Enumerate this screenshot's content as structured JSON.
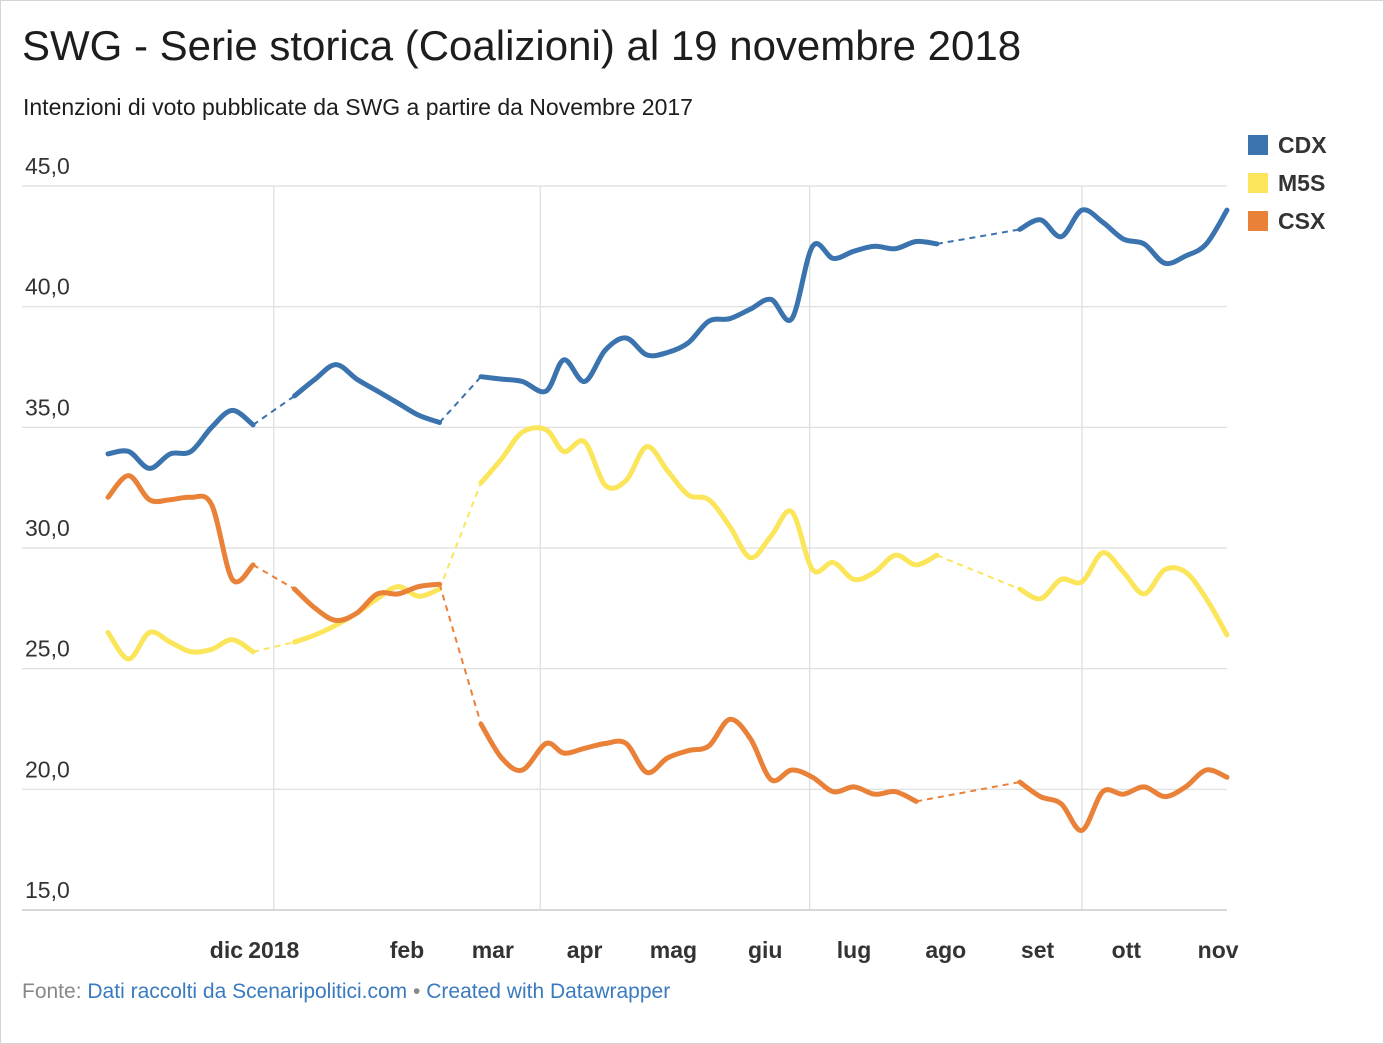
{
  "title": "SWG - Serie storica (Coalizioni) al 19 novembre 2018",
  "subtitle": "Intenzioni di voto pubblicate da SWG a partire da Novembre 2017",
  "footer": {
    "prefix": "Fonte:",
    "source": "Dati raccolti da Scenaripolitici.com",
    "separator": "•",
    "credit": "Created with Datawrapper"
  },
  "colors": {
    "CDX": "#3a73ad",
    "M5S": "#fbe55b",
    "CSX": "#e98139",
    "grid": "#dddddd",
    "link": "#3a7abf"
  },
  "chart_data": {
    "type": "line",
    "title": "SWG - Serie storica (Coalizioni) al 19 novembre 2018",
    "ylim": [
      15,
      45
    ],
    "xlim": [
      "2017-11-06",
      "2018-11-19"
    ],
    "yticks": [
      "45,0",
      "40,0",
      "35,0",
      "30,0",
      "25,0",
      "20,0",
      "15,0"
    ],
    "ytick_values": [
      45,
      40,
      35,
      30,
      25,
      20,
      15
    ],
    "xticks": [
      {
        "label": "dic",
        "date": "2017-12-01"
      },
      {
        "label": "2018",
        "date": "2018-01-01"
      },
      {
        "label": "feb",
        "date": "2018-02-01"
      },
      {
        "label": "mar",
        "date": "2018-03-01"
      },
      {
        "label": "apr",
        "date": "2018-04-01"
      },
      {
        "label": "mag",
        "date": "2018-05-01"
      },
      {
        "label": "giu",
        "date": "2018-06-01"
      },
      {
        "label": "lug",
        "date": "2018-07-01"
      },
      {
        "label": "ago",
        "date": "2018-08-01"
      },
      {
        "label": "set",
        "date": "2018-09-01"
      },
      {
        "label": "ott",
        "date": "2018-10-01"
      },
      {
        "label": "nov",
        "date": "2018-11-01"
      }
    ],
    "vgrid_dates": [
      "2018-01-01",
      "2018-04-01",
      "2018-07-01",
      "2018-10-01"
    ],
    "grid": true,
    "legend": "top-right",
    "series": [
      {
        "name": "CDX",
        "color": "#3a73ad",
        "points": [
          [
            "2017-11-06",
            33.9
          ],
          [
            "2017-11-13",
            34.0
          ],
          [
            "2017-11-20",
            33.3
          ],
          [
            "2017-11-27",
            33.9
          ],
          [
            "2017-12-04",
            34.0
          ],
          [
            "2017-12-11",
            35.0
          ],
          [
            "2017-12-18",
            35.7
          ],
          [
            "2017-12-25",
            35.1
          ],
          [
            "2018-01-08",
            36.3
          ],
          [
            "2018-01-15",
            37.0
          ],
          [
            "2018-01-22",
            37.6
          ],
          [
            "2018-01-29",
            37.0
          ],
          [
            "2018-02-05",
            36.5
          ],
          [
            "2018-02-12",
            36.0
          ],
          [
            "2018-02-19",
            35.5
          ],
          [
            "2018-02-26",
            35.2
          ],
          [
            "2018-03-12",
            37.1
          ],
          [
            "2018-03-19",
            37.0
          ],
          [
            "2018-03-26",
            36.9
          ],
          [
            "2018-04-03",
            36.5
          ],
          [
            "2018-04-09",
            37.8
          ],
          [
            "2018-04-16",
            36.9
          ],
          [
            "2018-04-23",
            38.2
          ],
          [
            "2018-04-30",
            38.7
          ],
          [
            "2018-05-07",
            38.0
          ],
          [
            "2018-05-14",
            38.1
          ],
          [
            "2018-05-21",
            38.5
          ],
          [
            "2018-05-28",
            39.4
          ],
          [
            "2018-06-04",
            39.5
          ],
          [
            "2018-06-11",
            39.9
          ],
          [
            "2018-06-18",
            40.3
          ],
          [
            "2018-06-25",
            39.5
          ],
          [
            "2018-07-02",
            42.5
          ],
          [
            "2018-07-09",
            42.0
          ],
          [
            "2018-07-16",
            42.3
          ],
          [
            "2018-07-23",
            42.5
          ],
          [
            "2018-07-30",
            42.4
          ],
          [
            "2018-08-06",
            42.7
          ],
          [
            "2018-08-13",
            42.6
          ],
          [
            "2018-09-10",
            43.2
          ],
          [
            "2018-09-17",
            43.6
          ],
          [
            "2018-09-24",
            42.9
          ],
          [
            "2018-10-01",
            44.0
          ],
          [
            "2018-10-08",
            43.5
          ],
          [
            "2018-10-15",
            42.8
          ],
          [
            "2018-10-22",
            42.6
          ],
          [
            "2018-10-29",
            41.8
          ],
          [
            "2018-11-05",
            42.1
          ],
          [
            "2018-11-12",
            42.6
          ],
          [
            "2018-11-19",
            44.0
          ]
        ]
      },
      {
        "name": "M5S",
        "color": "#fbe55b",
        "points": [
          [
            "2017-11-06",
            26.5
          ],
          [
            "2017-11-13",
            25.4
          ],
          [
            "2017-11-20",
            26.5
          ],
          [
            "2017-11-27",
            26.1
          ],
          [
            "2017-12-04",
            25.7
          ],
          [
            "2017-12-11",
            25.8
          ],
          [
            "2017-12-18",
            26.2
          ],
          [
            "2017-12-25",
            25.7
          ],
          [
            "2018-01-08",
            26.1
          ],
          [
            "2018-01-15",
            26.4
          ],
          [
            "2018-01-22",
            26.8
          ],
          [
            "2018-01-29",
            27.3
          ],
          [
            "2018-02-05",
            27.9
          ],
          [
            "2018-02-12",
            28.4
          ],
          [
            "2018-02-19",
            28.0
          ],
          [
            "2018-02-26",
            28.3
          ],
          [
            "2018-03-12",
            32.7
          ],
          [
            "2018-03-19",
            33.7
          ],
          [
            "2018-03-26",
            34.8
          ],
          [
            "2018-04-03",
            34.9
          ],
          [
            "2018-04-09",
            34.0
          ],
          [
            "2018-04-16",
            34.4
          ],
          [
            "2018-04-23",
            32.6
          ],
          [
            "2018-04-30",
            32.8
          ],
          [
            "2018-05-07",
            34.2
          ],
          [
            "2018-05-14",
            33.2
          ],
          [
            "2018-05-21",
            32.2
          ],
          [
            "2018-05-28",
            32.0
          ],
          [
            "2018-06-04",
            30.9
          ],
          [
            "2018-06-11",
            29.6
          ],
          [
            "2018-06-18",
            30.5
          ],
          [
            "2018-06-25",
            31.5
          ],
          [
            "2018-07-02",
            29.1
          ],
          [
            "2018-07-09",
            29.4
          ],
          [
            "2018-07-16",
            28.7
          ],
          [
            "2018-07-23",
            29.0
          ],
          [
            "2018-07-30",
            29.7
          ],
          [
            "2018-08-06",
            29.3
          ],
          [
            "2018-08-13",
            29.7
          ],
          [
            "2018-09-10",
            28.3
          ],
          [
            "2018-09-17",
            27.9
          ],
          [
            "2018-09-24",
            28.7
          ],
          [
            "2018-10-01",
            28.6
          ],
          [
            "2018-10-08",
            29.8
          ],
          [
            "2018-10-15",
            29.0
          ],
          [
            "2018-10-22",
            28.1
          ],
          [
            "2018-10-29",
            29.1
          ],
          [
            "2018-11-05",
            29.0
          ],
          [
            "2018-11-12",
            27.9
          ],
          [
            "2018-11-19",
            26.4
          ]
        ]
      },
      {
        "name": "CSX",
        "color": "#e98139",
        "points": [
          [
            "2017-11-06",
            32.1
          ],
          [
            "2017-11-13",
            33.0
          ],
          [
            "2017-11-20",
            32.0
          ],
          [
            "2017-11-27",
            32.0
          ],
          [
            "2017-12-04",
            32.1
          ],
          [
            "2017-12-11",
            31.8
          ],
          [
            "2017-12-18",
            28.7
          ],
          [
            "2017-12-25",
            29.3
          ],
          [
            "2018-01-08",
            28.3
          ],
          [
            "2018-01-15",
            27.5
          ],
          [
            "2018-01-22",
            27.0
          ],
          [
            "2018-01-29",
            27.3
          ],
          [
            "2018-02-05",
            28.1
          ],
          [
            "2018-02-12",
            28.1
          ],
          [
            "2018-02-19",
            28.4
          ],
          [
            "2018-02-26",
            28.5
          ],
          [
            "2018-03-12",
            22.7
          ],
          [
            "2018-03-19",
            21.3
          ],
          [
            "2018-03-26",
            20.8
          ],
          [
            "2018-04-03",
            21.9
          ],
          [
            "2018-04-09",
            21.5
          ],
          [
            "2018-04-16",
            21.7
          ],
          [
            "2018-04-23",
            21.9
          ],
          [
            "2018-04-30",
            21.9
          ],
          [
            "2018-05-07",
            20.7
          ],
          [
            "2018-05-14",
            21.3
          ],
          [
            "2018-05-21",
            21.6
          ],
          [
            "2018-05-28",
            21.8
          ],
          [
            "2018-06-04",
            22.9
          ],
          [
            "2018-06-11",
            22.1
          ],
          [
            "2018-06-18",
            20.4
          ],
          [
            "2018-06-25",
            20.8
          ],
          [
            "2018-07-02",
            20.5
          ],
          [
            "2018-07-09",
            19.9
          ],
          [
            "2018-07-16",
            20.1
          ],
          [
            "2018-07-23",
            19.8
          ],
          [
            "2018-07-30",
            19.9
          ],
          [
            "2018-08-06",
            19.5
          ],
          [
            "2018-09-10",
            20.3
          ],
          [
            "2018-09-17",
            19.7
          ],
          [
            "2018-09-24",
            19.4
          ],
          [
            "2018-10-01",
            18.3
          ],
          [
            "2018-10-08",
            19.9
          ],
          [
            "2018-10-15",
            19.8
          ],
          [
            "2018-10-22",
            20.1
          ],
          [
            "2018-10-29",
            19.7
          ],
          [
            "2018-11-05",
            20.1
          ],
          [
            "2018-11-12",
            20.8
          ],
          [
            "2018-11-19",
            20.5
          ]
        ]
      }
    ]
  }
}
